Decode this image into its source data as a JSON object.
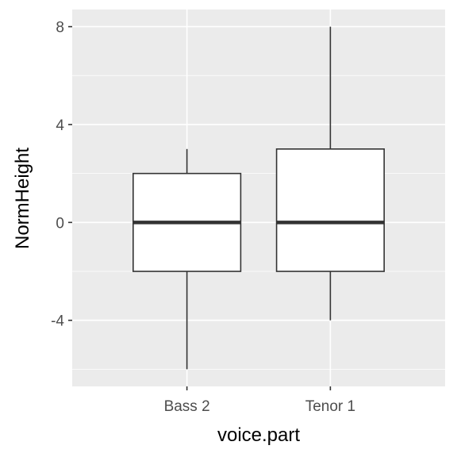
{
  "chart_data": {
    "type": "boxplot",
    "xlabel": "voice.part",
    "ylabel": "NormHeight",
    "categories": [
      "Bass 2",
      "Tenor 1"
    ],
    "boxes": [
      {
        "category": "Bass 2",
        "min": -6,
        "q1": -2,
        "median": 0,
        "q3": 2,
        "max": 3
      },
      {
        "category": "Tenor 1",
        "min": -4,
        "q1": -2,
        "median": 0,
        "q3": 3,
        "max": 8
      }
    ],
    "y_ticks": [
      -4,
      0,
      4,
      8
    ],
    "y_tick_labels": [
      "-4",
      "0",
      "4",
      "8"
    ],
    "ylim": [
      -6.7,
      8.7
    ],
    "grid": true,
    "colors": {
      "panel_background": "#ebebeb",
      "grid_major": "#ffffff",
      "box_fill": "#ffffff",
      "box_stroke": "#333333",
      "tick_mark": "#333333"
    }
  }
}
